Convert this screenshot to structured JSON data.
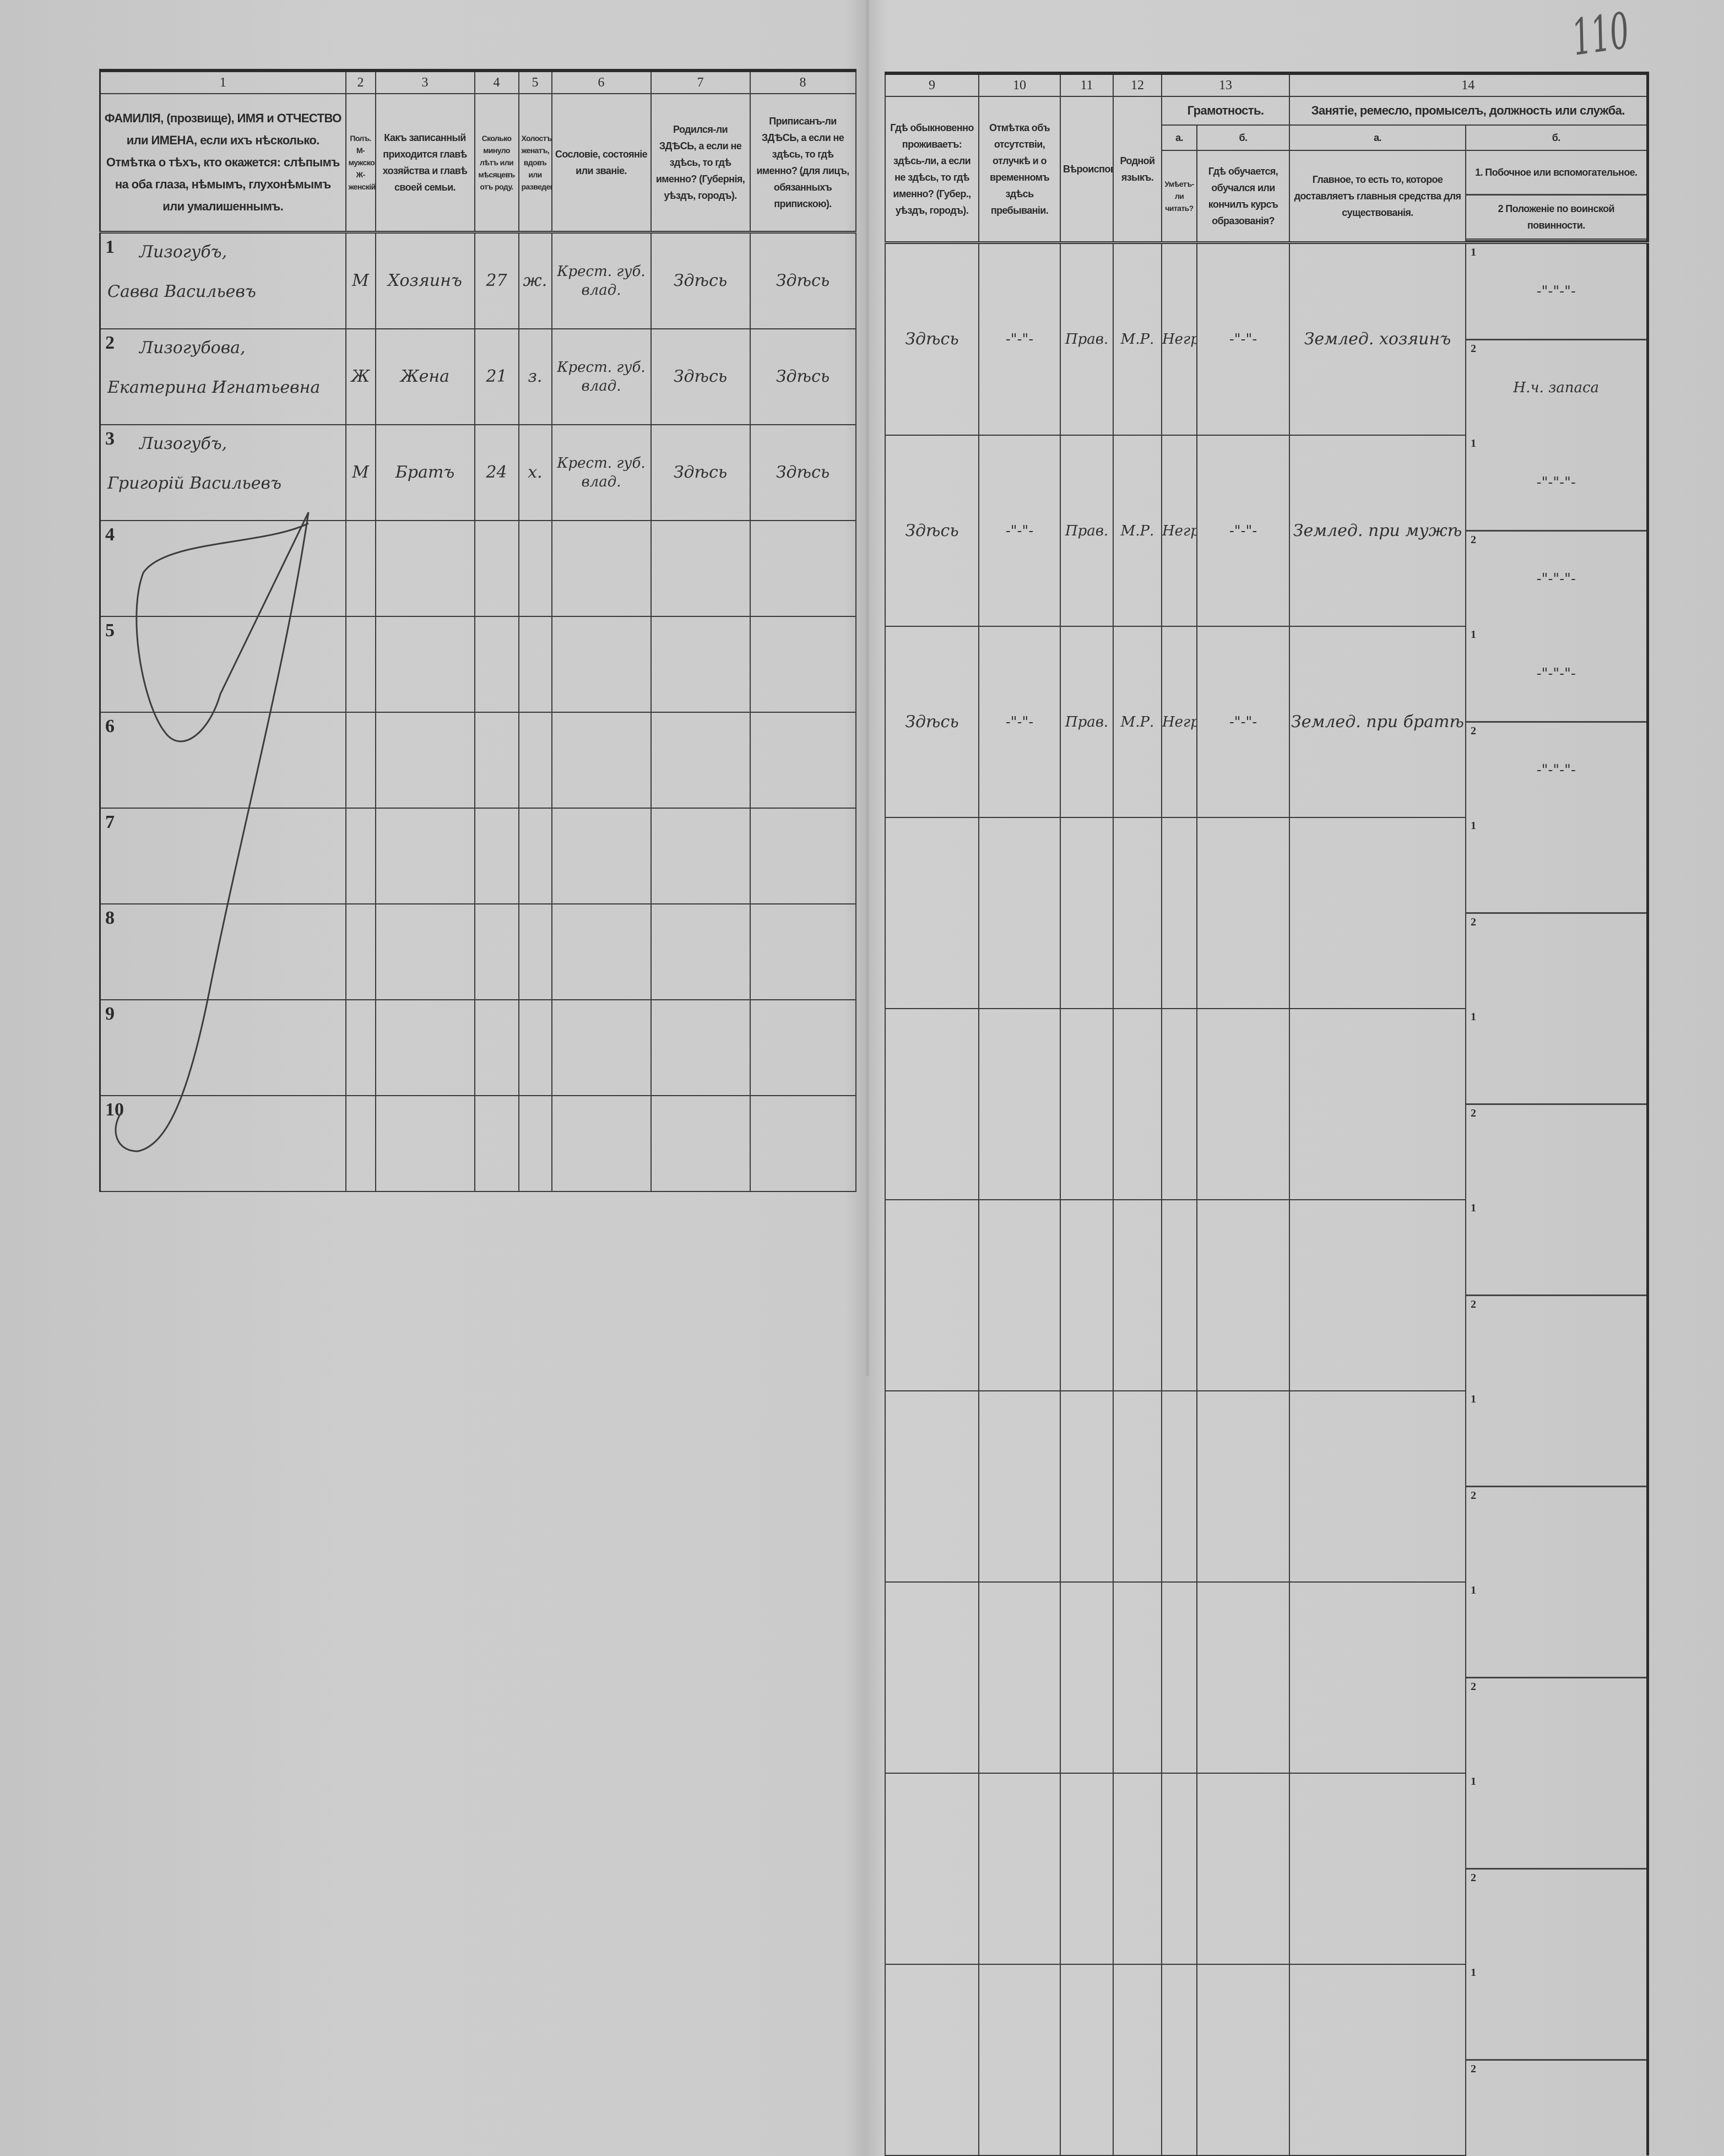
{
  "page_number": "110",
  "left_columns": {
    "numbers": [
      "1",
      "2",
      "3",
      "4",
      "5",
      "6",
      "7",
      "8"
    ],
    "headers": [
      "ФАМИЛІЯ, (прозвище), ИМЯ и ОТЧЕСТВО или ИМЕНА, если ихъ нѣсколько. Отмѣтка о тѣхъ, кто окажется: слѣпымъ на оба глаза, нѣмымъ, глухонѣмымъ или умалишеннымъ.",
      "Полъ. М-мужской. Ж-женскій.",
      "Какъ записанный приходится главѣ хозяйства и главѣ своей семьи.",
      "Сколько минуло лѣтъ или мѣсяцевъ отъ роду.",
      "Холостъ, женатъ, вдовъ или разведенъ.",
      "Сословіе, состояніе или званіе.",
      "Родился-ли ЗДѢСЬ, а если не здѣсь, то гдѣ именно? (Губернія, уѣздъ, городъ).",
      "Приписанъ-ли ЗДѢСЬ, а если не здѣсь, то гдѣ именно? (для лицъ, обязанныхъ припискою)."
    ]
  },
  "right_columns": {
    "numbers": [
      "9",
      "10",
      "11",
      "12",
      "13",
      "14"
    ],
    "headers": {
      "c9": "Гдѣ обыкновенно проживаетъ: здѣсь-ли, а если не здѣсь, то гдѣ именно? (Губер., уѣздъ, городъ).",
      "c10": "Отмѣтка объ отсутствіи, отлучкѣ и о временномъ здѣсь пребываніи.",
      "c11": "Вѣроисповѣданіе.",
      "c12": "Родной языкъ.",
      "c13": "Грамотность.",
      "c13a_letter": "а.",
      "c13a": "Умѣетъ-ли читать?",
      "c13b_letter": "б.",
      "c13b": "Гдѣ обучается, обучался или кончилъ курсъ образованія?",
      "c14": "Занятіе, ремесло, промыселъ, должность или служба.",
      "c14a_letter": "а.",
      "c14a": "Главное, то есть то, которое доставляетъ главныя средства для существованія.",
      "c14b_letter": "б.",
      "c14b1": "1. Побочное или вспомогательное.",
      "c14b2": "2 Положеніе по воинской повинности."
    }
  },
  "rows": [
    {
      "n": "1",
      "surname": "Лизогубъ,",
      "given": "Савва Васильевъ",
      "sex": "М",
      "relation": "Хозяинъ",
      "age": "27",
      "marital": "ж.",
      "estate": "Крест. губ. влад.",
      "born": "Здѣсь",
      "registered": "Здѣсь",
      "resides": "Здѣсь",
      "absence": "-\"-\"-",
      "religion": "Прав.",
      "language": "М.Р.",
      "literate": "Негр.",
      "education": "-\"-\"-",
      "occupation": "Землед. хозяинъ",
      "side": "-\"-\"-\"-",
      "military": "Н.ч. запаса"
    },
    {
      "n": "2",
      "surname": "Лизогубова,",
      "given": "Екатерина Игнатьевна",
      "sex": "Ж",
      "relation": "Жена",
      "age": "21",
      "marital": "з.",
      "estate": "Крест. губ. влад.",
      "born": "Здѣсь",
      "registered": "Здѣсь",
      "resides": "Здѣсь",
      "absence": "-\"-\"-",
      "religion": "Прав.",
      "language": "М.Р.",
      "literate": "Негр.",
      "education": "-\"-\"-",
      "occupation": "Землед. при мужѣ",
      "side": "-\"-\"-\"-",
      "military": "-\"-\"-\"-"
    },
    {
      "n": "3",
      "surname": "Лизогубъ,",
      "given": "Григорій Васильевъ",
      "sex": "М",
      "relation": "Братъ",
      "age": "24",
      "marital": "х.",
      "estate": "Крест. губ. влад.",
      "born": "Здѣсь",
      "registered": "Здѣсь",
      "resides": "Здѣсь",
      "absence": "-\"-\"-",
      "religion": "Прав.",
      "language": "М.Р.",
      "literate": "Негр.",
      "education": "-\"-\"-",
      "occupation": "Землед. при братѣ",
      "side": "-\"-\"-\"-",
      "military": "-\"-\"-\"-"
    },
    {
      "n": "4"
    },
    {
      "n": "5"
    },
    {
      "n": "6"
    },
    {
      "n": "7"
    },
    {
      "n": "8"
    },
    {
      "n": "9"
    },
    {
      "n": "10"
    }
  ],
  "sub_labels": [
    "1",
    "2"
  ]
}
